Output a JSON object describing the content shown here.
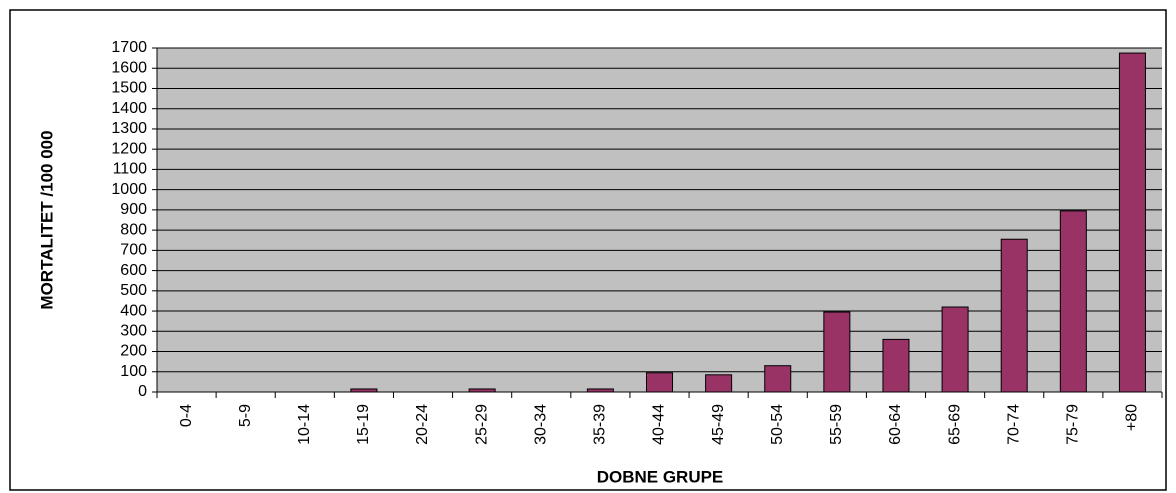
{
  "chart_data": {
    "type": "bar",
    "xlabel": "DOBNE GRUPE",
    "ylabel": "MORTALITET /100 000",
    "categories": [
      "0-4",
      "5-9",
      "10-14",
      "15-19",
      "20-24",
      "25-29",
      "30-34",
      "35-39",
      "40-44",
      "45-49",
      "50-54",
      "55-59",
      "60-64",
      "65-69",
      "70-74",
      "75-79",
      "+80"
    ],
    "values": [
      0,
      0,
      0,
      15,
      0,
      15,
      0,
      15,
      95,
      85,
      130,
      395,
      260,
      420,
      755,
      895,
      1675
    ],
    "color": "#993366",
    "ylim": [
      0,
      1700
    ],
    "yticks": [
      0,
      100,
      200,
      300,
      400,
      500,
      600,
      700,
      800,
      900,
      1000,
      1100,
      1200,
      1300,
      1400,
      1500,
      1600,
      1700
    ],
    "grid": true
  }
}
